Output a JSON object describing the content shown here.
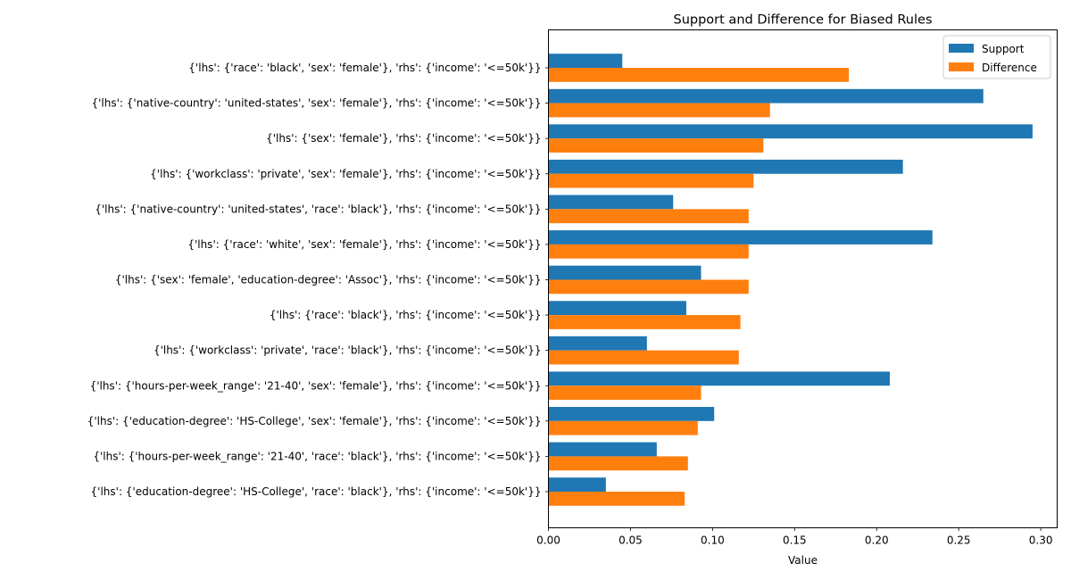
{
  "chart_data": {
    "type": "bar",
    "orientation": "horizontal",
    "title": "Support and Difference for Biased Rules",
    "xlabel": "Value",
    "ylabel": "",
    "xlim": [
      0,
      0.31
    ],
    "xticks": [
      "0.00",
      "0.05",
      "0.10",
      "0.15",
      "0.20",
      "0.25",
      "0.30"
    ],
    "grid": false,
    "legend_position": "top-right",
    "categories": [
      "{'lhs': {'race': 'black', 'sex': 'female'}, 'rhs': {'income': '<=50k'}}",
      "{'lhs': {'native-country': 'united-states', 'sex': 'female'}, 'rhs': {'income': '<=50k'}}",
      "{'lhs': {'sex': 'female'}, 'rhs': {'income': '<=50k'}}",
      "{'lhs': {'workclass': 'private', 'sex': 'female'}, 'rhs': {'income': '<=50k'}}",
      "{'lhs': {'native-country': 'united-states', 'race': 'black'}, 'rhs': {'income': '<=50k'}}",
      "{'lhs': {'race': 'white', 'sex': 'female'}, 'rhs': {'income': '<=50k'}}",
      "{'lhs': {'sex': 'female', 'education-degree': 'Assoc'}, 'rhs': {'income': '<=50k'}}",
      "{'lhs': {'race': 'black'}, 'rhs': {'income': '<=50k'}}",
      "{'lhs': {'workclass': 'private', 'race': 'black'}, 'rhs': {'income': '<=50k'}}",
      "{'lhs': {'hours-per-week_range': '21-40', 'sex': 'female'}, 'rhs': {'income': '<=50k'}}",
      "{'lhs': {'education-degree': 'HS-College', 'sex': 'female'}, 'rhs': {'income': '<=50k'}}",
      "{'lhs': {'hours-per-week_range': '21-40', 'race': 'black'}, 'rhs': {'income': '<=50k'}}",
      "{'lhs': {'education-degree': 'HS-College', 'race': 'black'}, 'rhs': {'income': '<=50k'}}"
    ],
    "series": [
      {
        "name": "Support",
        "color": "#1f77b4",
        "values": [
          0.045,
          0.265,
          0.295,
          0.216,
          0.076,
          0.234,
          0.093,
          0.084,
          0.06,
          0.208,
          0.101,
          0.066,
          0.035
        ]
      },
      {
        "name": "Difference",
        "color": "#ff7f0e",
        "values": [
          0.183,
          0.135,
          0.131,
          0.125,
          0.122,
          0.122,
          0.122,
          0.117,
          0.116,
          0.093,
          0.091,
          0.085,
          0.083
        ]
      }
    ]
  }
}
